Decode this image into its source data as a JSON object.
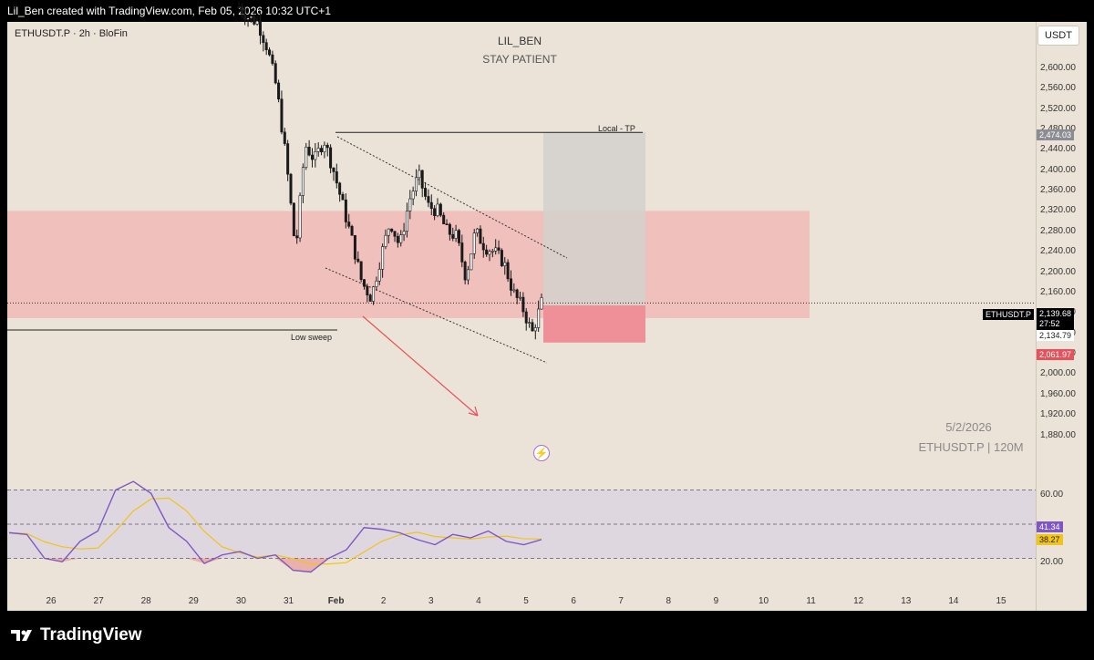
{
  "header": {
    "credit": "Lil_Ben created with TradingView.com, Feb 05, 2026 10:32 UTC+1"
  },
  "chart": {
    "symbol_line": "ETHUSDT.P · 2h · BloFin",
    "title": "LIL_BEN",
    "subtitle": "STAY PATIENT",
    "currency_button": "USDT",
    "watermark_date": "5/2/2026",
    "watermark_symbol": "ETHUSDT.P | 120M",
    "annotations": {
      "local_tp": "Local - TP",
      "low_sweep": "Low sweep"
    },
    "badges": {
      "tp_price": "2,474.03",
      "symbol_tag": "ETHUSDT.P",
      "last_price": "2,139.68",
      "countdown": "27:52",
      "entry_price": "2,134.79",
      "stop_price": "2,061.97",
      "rsi_value": "41.34",
      "rsi_ma_value": "38.27"
    },
    "colors": {
      "background": "#ebe3d7",
      "bull_candle": "#ffffff",
      "bear_candle": "#1a1a1a",
      "zone_fill": "#f4a4a6",
      "tp_box": "#d3d0cc",
      "stop_box": "#ef8f97",
      "rsi_line": "#7e57c2",
      "rsi_ma": "#f0c419",
      "arrow": "#e8505b"
    }
  },
  "brand": {
    "logo_text": "TradingView"
  },
  "chart_data": {
    "type": "candlestick",
    "symbol": "ETHUSDT.P",
    "timeframe": "2h",
    "exchange": "BloFin",
    "ylim": [
      1840,
      2680
    ],
    "y_ticks": [
      "2,600.00",
      "2,560.00",
      "2,520.00",
      "2,480.00",
      "2,440.00",
      "2,400.00",
      "2,360.00",
      "2,320.00",
      "2,280.00",
      "2,240.00",
      "2,200.00",
      "2,160.00",
      "2,120.00",
      "2,080.00",
      "2,040.00",
      "2,000.00",
      "1,960.00",
      "1,920.00",
      "1,880.00"
    ],
    "x_ticks": [
      "26",
      "27",
      "28",
      "29",
      "30",
      "31",
      "Feb",
      "2",
      "3",
      "4",
      "5",
      "6",
      "7",
      "8",
      "9",
      "10",
      "11",
      "12",
      "13",
      "14",
      "15"
    ],
    "close_path": [
      2720,
      2700,
      2690,
      2640,
      2560,
      2420,
      2240,
      2450,
      2420,
      2460,
      2400,
      2330,
      2260,
      2180,
      2150,
      2230,
      2300,
      2250,
      2340,
      2390,
      2330,
      2320,
      2280,
      2270,
      2190,
      2280,
      2250,
      2240,
      2220,
      2160,
      2130,
      2080,
      2140
    ],
    "zones": [
      {
        "name": "Resistance zone",
        "from": 2110,
        "to": 2320
      },
      {
        "name": "Local - TP",
        "from": 2134.79,
        "to": 2474.03
      },
      {
        "name": "Stop",
        "from": 2061.97,
        "to": 2134.79
      }
    ],
    "levels": {
      "last": 2139.68,
      "entry": 2134.79,
      "stop": 2061.97,
      "tp": 2474.03
    },
    "rsi": {
      "ylim": [
        10,
        90
      ],
      "ticks": [
        "60.00",
        "20.00"
      ],
      "bands": [
        70,
        50,
        30
      ],
      "values": [
        45,
        44,
        30,
        28,
        40,
        46,
        70,
        75,
        68,
        48,
        40,
        27,
        32,
        34,
        30,
        32,
        23,
        22,
        30,
        35,
        48,
        47,
        45,
        41,
        38,
        44,
        42,
        46,
        40,
        38,
        41
      ],
      "last": 41.34,
      "ma_last": 38.27
    }
  }
}
